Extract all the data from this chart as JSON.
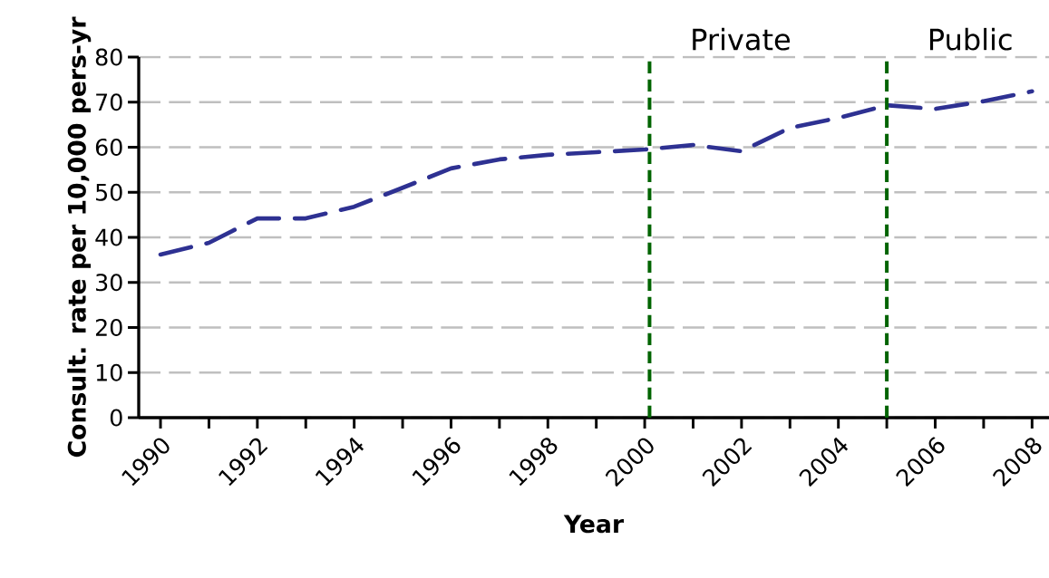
{
  "chart_data": {
    "type": "line",
    "xlabel": "Year",
    "ylabel": "Consult. rate per 10,000 pers-yr",
    "x": [
      1990,
      1991,
      1992,
      1993,
      1994,
      1995,
      1996,
      1997,
      1998,
      1999,
      2000,
      2001,
      2002,
      2003,
      2004,
      2005,
      2006,
      2007,
      2008
    ],
    "series": [
      {
        "color": "#2e3192",
        "values": [
          36.2,
          38.8,
          44.2,
          44.2,
          46.8,
          51.0,
          55.3,
          57.3,
          58.3,
          58.9,
          59.5,
          60.5,
          59.1,
          64.3,
          66.5,
          69.3,
          68.5,
          70.2,
          72.4
        ]
      }
    ],
    "xlim": [
      1989.55,
      2008.35
    ],
    "ylim": [
      0,
      80
    ],
    "xticks": [
      1990,
      {
        "value": 1991,
        "label": null
      },
      1992,
      {
        "value": 1993,
        "label": null
      },
      1994,
      {
        "value": 1995,
        "label": null
      },
      1996,
      {
        "value": 1997,
        "label": null
      },
      1998,
      {
        "value": 1999,
        "label": null
      },
      2000,
      {
        "value": 2001,
        "label": null
      },
      2002,
      {
        "value": 2003,
        "label": null
      },
      2004,
      {
        "value": 2005,
        "label": null
      },
      2006,
      {
        "value": 2007,
        "label": null
      },
      2008
    ],
    "yticks": [
      0,
      10,
      20,
      30,
      40,
      50,
      60,
      70,
      80
    ],
    "grid": "y",
    "line_style": "dashed",
    "ref_lines": [
      {
        "axis": "x",
        "value": 2000.1,
        "label": "Private",
        "color": "#006400",
        "line_style": "dashed"
      },
      {
        "axis": "x",
        "value": 2005.0,
        "label": "Public",
        "color": "#006400",
        "line_style": "dashed"
      }
    ]
  }
}
